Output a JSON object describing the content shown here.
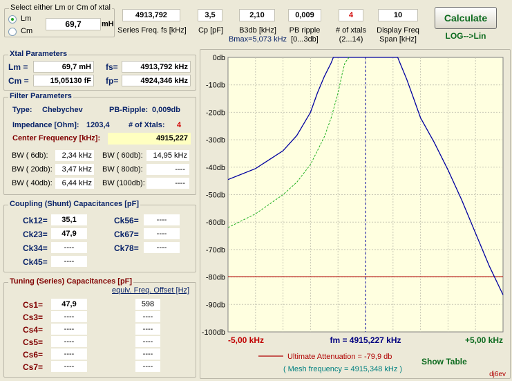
{
  "select_group": {
    "title": "Select either Lm or Cm of xtal",
    "option_lm": "Lm",
    "option_cm": "Cm",
    "value": "69,7",
    "unit": "mH"
  },
  "top_fields": {
    "series_freq": {
      "value": "4913,792",
      "label": "Series Freq. fs [kHz]"
    },
    "cp": {
      "value": "3,5",
      "label": "Cp [pF]"
    },
    "b3db": {
      "value": "2,10",
      "label": "B3db [kHz]",
      "sublabel": "Bmax=5,073 kHz"
    },
    "pb_ripple": {
      "value": "0,009",
      "label": "PB ripple",
      "sublabel": "[0...3db]"
    },
    "num_xtals": {
      "value": "4",
      "label": "# of xtals",
      "sublabel": "(2...14)"
    },
    "display_span": {
      "value": "10",
      "label": "Display Freq",
      "sublabel": "Span [kHz]"
    }
  },
  "calculate_label": "Calculate",
  "log_lin_label": "LOG-->Lin",
  "xtal_params": {
    "title": "Xtal Parameters",
    "lm_label": "Lm =",
    "lm_value": "69,7 mH",
    "fs_label": "fs=",
    "fs_value": "4913,792 kHz",
    "cm_label": "Cm =",
    "cm_value": "15,05130  fF",
    "fp_label": "fp=",
    "fp_value": "4924,346 kHz"
  },
  "filter_params": {
    "title": "Filter Parameters",
    "type_label": "Type:",
    "type_value": "Chebychev",
    "ripple_label": "PB-Ripple:",
    "ripple_value": "0,009db",
    "impedance_label": "Impedance [Ohm]:",
    "impedance_value": "1203,4",
    "xtals_label": "# of Xtals:",
    "xtals_value": "4",
    "center_label": "Center Frequency [kHz]:",
    "center_value": "4915,227",
    "bw": [
      {
        "label": "BW (  6db):",
        "value": "2,34 kHz"
      },
      {
        "label": "BW ( 60db):",
        "value": "14,95 kHz"
      },
      {
        "label": "BW ( 20db):",
        "value": "3,47 kHz"
      },
      {
        "label": "BW ( 80db):",
        "value": "----"
      },
      {
        "label": "BW ( 40db):",
        "value": "6,44 kHz"
      },
      {
        "label": "BW (100db):",
        "value": "----"
      }
    ]
  },
  "coupling": {
    "title": "Coupling (Shunt) Capacitances [pF]",
    "items": [
      {
        "label": "Ck12=",
        "value": "35,1"
      },
      {
        "label": "Ck56=",
        "value": "----"
      },
      {
        "label": "Ck23=",
        "value": "47,9"
      },
      {
        "label": "Ck67=",
        "value": "----"
      },
      {
        "label": "Ck34=",
        "value": "----"
      },
      {
        "label": "Ck78=",
        "value": "----"
      },
      {
        "label": "Ck45=",
        "value": "----"
      }
    ]
  },
  "tuning": {
    "title": "Tuning (Series) Capacitances [pF]",
    "offset_header": "equiv. Freq. Offset [Hz]",
    "items": [
      {
        "label": "Cs1=",
        "value": "47,9",
        "offset": "598"
      },
      {
        "label": "Cs3=",
        "value": "----",
        "offset": "----"
      },
      {
        "label": "Cs4=",
        "value": "----",
        "offset": "----"
      },
      {
        "label": "Cs5=",
        "value": "----",
        "offset": "----"
      },
      {
        "label": "Cs6=",
        "value": "----",
        "offset": "----"
      },
      {
        "label": "Cs7=",
        "value": "----",
        "offset": "----"
      }
    ]
  },
  "chart_data": {
    "type": "line",
    "x_range_khz": [
      -5,
      5
    ],
    "ylim": [
      -100,
      0
    ],
    "y_ticks": [
      "0db",
      "-10db",
      "-20db",
      "-30db",
      "-40db",
      "-50db",
      "-60db",
      "-70db",
      "-80db",
      "-90db",
      "-100db"
    ],
    "x_label_left": "-5,00 kHz",
    "x_label_center": "fm = 4915,227 kHz",
    "x_label_right": "+5,00 kHz",
    "grid": true,
    "background": "#ffffe0",
    "series": [
      {
        "color": "#0000a0",
        "style": "solid",
        "x": [
          -5,
          -4,
          -3,
          -2.5,
          -2,
          -1.75,
          -1.5,
          -1.25,
          -1.17,
          -1,
          -0.5,
          0,
          0.5,
          1,
          1.17,
          1.25,
          1.5,
          1.75,
          2,
          2.5,
          3,
          3.5,
          4,
          4.5,
          5
        ],
        "y": [
          -44.5,
          -40.5,
          -34,
          -28.5,
          -20,
          -13,
          -7,
          -2,
          0,
          0,
          0,
          0,
          0,
          0,
          0,
          -2,
          -8,
          -15,
          -22,
          -31,
          -41,
          -52,
          -64,
          -76,
          -86.5
        ]
      },
      {
        "color": "#21b021",
        "style": "dashed",
        "x": [
          -5,
          -4,
          -3,
          -2.5,
          -2,
          -1.5,
          -1.25,
          -1,
          -0.85,
          -0.75,
          -0.6
        ],
        "y": [
          -62,
          -57,
          -50,
          -45.5,
          -39,
          -29,
          -22,
          -13,
          -6,
          -2,
          0
        ]
      }
    ],
    "markers": [
      {
        "kind": "ultimate_attenuation",
        "y": -79.9,
        "color": "#b00000"
      },
      {
        "kind": "center_line",
        "x": 0,
        "color": "#0000a0"
      }
    ],
    "legend_label": "Ultimate Attenuation =   -79,9 db",
    "mesh_frequency": "( Mesh frequency = 4915,348 kHz )"
  },
  "show_table_label": "Show Table",
  "signature": "dj6ev"
}
